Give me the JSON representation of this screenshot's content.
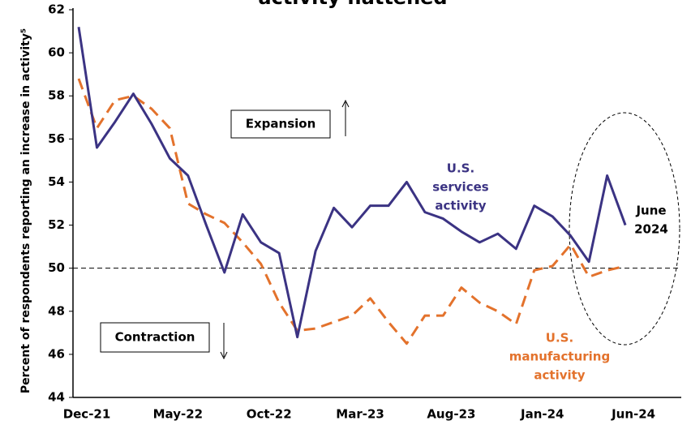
{
  "chart_data": {
    "type": "line",
    "title": "activity flattened",
    "y_label": "Percent of respondents reporting an increase in activity⁵",
    "categories": [
      "Dec-21",
      null,
      null,
      null,
      null,
      "May-22",
      null,
      null,
      null,
      null,
      "Oct-22",
      null,
      null,
      null,
      null,
      "Mar-23",
      null,
      null,
      null,
      null,
      "Aug-23",
      null,
      null,
      null,
      null,
      "Jan-24",
      null,
      null,
      null,
      null,
      "Jun-24"
    ],
    "series": [
      {
        "name": "U.S. services activity",
        "color": "#3b3383",
        "dash": false,
        "values": [
          61.2,
          55.6,
          56.8,
          58.1,
          56.7,
          55.1,
          54.3,
          52,
          49.8,
          52.5,
          51.2,
          50.7,
          46.8,
          50.8,
          52.8,
          51.9,
          52.9,
          52.9,
          54,
          52.6,
          52.3,
          51.7,
          51.2,
          51.6,
          50.9,
          52.9,
          52.4,
          51.5,
          50.3,
          54.3,
          52
        ]
      },
      {
        "name": "U.S. manufacturing activity",
        "color": "#e3722c",
        "dash": true,
        "values": [
          58.8,
          56.5,
          57.8,
          58,
          57.4,
          56.5,
          53,
          52.5,
          52.1,
          51.2,
          50.2,
          48.4,
          47.1,
          47.2,
          47.5,
          47.8,
          48.6,
          47.5,
          46.5,
          47.8,
          47.8,
          49.1,
          48.4,
          48,
          47.4,
          49.9,
          50.1,
          51.1,
          49.6,
          49.9,
          50.1
        ]
      }
    ],
    "series_labels": [
      [
        "U.S.",
        "services",
        "activity"
      ],
      [
        "U.S.",
        "manufacturing",
        "activity"
      ]
    ],
    "annotations": {
      "expansion": "Expansion",
      "contraction": "Contraction",
      "highlight": [
        "June",
        "2024"
      ]
    },
    "reference_line": 50,
    "ylim": [
      44,
      62
    ],
    "yticks": [
      44,
      46,
      48,
      50,
      52,
      54,
      56,
      58,
      60,
      62
    ]
  }
}
